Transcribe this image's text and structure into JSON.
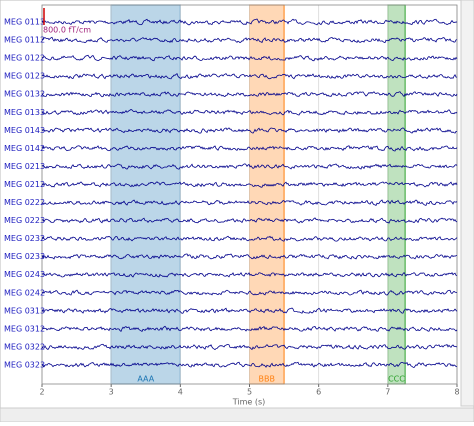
{
  "chart_data": {
    "type": "line",
    "xlabel": "Time (s)",
    "xlim": [
      2,
      8
    ],
    "xticks": [
      2,
      3,
      4,
      5,
      6,
      7,
      8
    ],
    "channels": [
      "MEG 0113",
      "MEG 0112",
      "MEG 0122",
      "MEG 0123",
      "MEG 0132",
      "MEG 0133",
      "MEG 0143",
      "MEG 0142",
      "MEG 0213",
      "MEG 0212",
      "MEG 0222",
      "MEG 0223",
      "MEG 0232",
      "MEG 0233",
      "MEG 0243",
      "MEG 0242",
      "MEG 0313",
      "MEG 0312",
      "MEG 0322",
      "MEG 0323"
    ],
    "trace_color": "#00008b",
    "channel_color": "#2020c0",
    "scale_label": "800.0 fT/cm",
    "annotations": [
      {
        "label": "AAA",
        "start": 3,
        "end": 4,
        "color": "#1f77b4"
      },
      {
        "label": "BBB",
        "start": 5,
        "end": 5.5,
        "color": "#ff7f0e"
      },
      {
        "label": "CCC",
        "start": 7,
        "end": 7.25,
        "color": "#2ca02c"
      }
    ],
    "grid": true
  }
}
